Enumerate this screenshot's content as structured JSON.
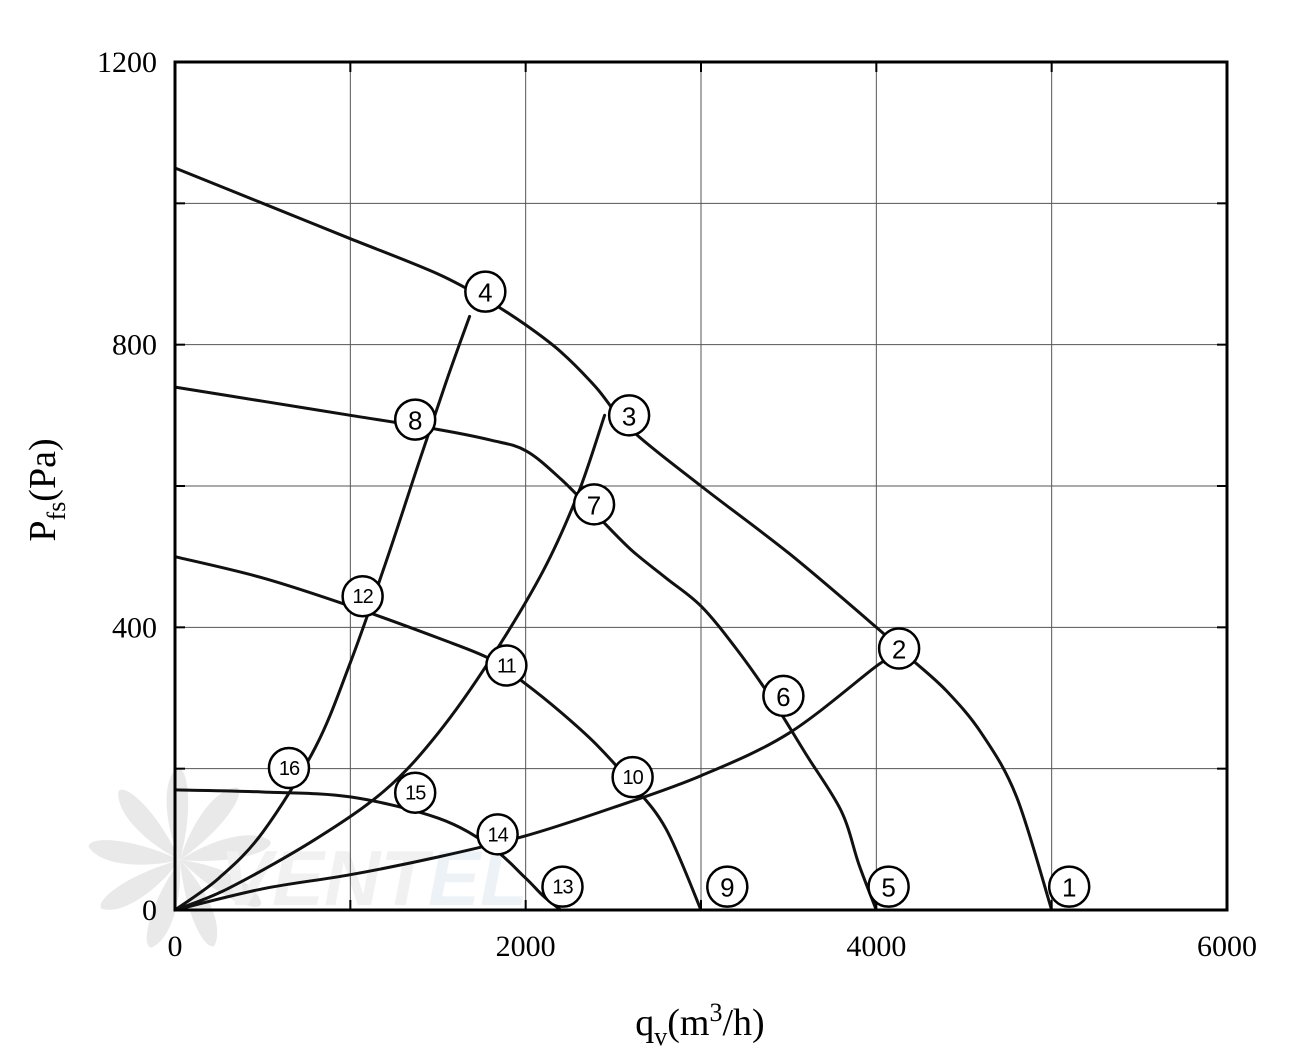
{
  "chart_data": {
    "type": "line",
    "title": "",
    "xlabel": {
      "main": "q",
      "sub": "v",
      "unit": "(m",
      "sup": "3",
      "unit_end": "/h)"
    },
    "ylabel": {
      "main": "P",
      "sub": "fs",
      "unit": "(Pa)"
    },
    "xlim": [
      0,
      6000
    ],
    "ylim": [
      0,
      1200
    ],
    "x_ticks": [
      "0",
      "2000",
      "4000",
      "6000"
    ],
    "y_ticks": [
      "0",
      "400",
      "800",
      "1200"
    ],
    "grid": true,
    "watermark": "VENTEL",
    "series": [
      {
        "points": [
          [
            0,
            1050
          ],
          [
            500,
            1000
          ],
          [
            1000,
            950
          ],
          [
            1500,
            900
          ],
          [
            1800,
            860
          ],
          [
            2000,
            828
          ],
          [
            2200,
            790
          ],
          [
            2400,
            740
          ],
          [
            2600,
            680
          ],
          [
            3000,
            600
          ],
          [
            3500,
            505
          ],
          [
            4000,
            400
          ],
          [
            4200,
            355
          ],
          [
            4400,
            310
          ],
          [
            4600,
            250
          ],
          [
            4800,
            160
          ],
          [
            5000,
            0
          ]
        ]
      },
      {
        "points": [
          [
            0,
            740
          ],
          [
            500,
            720
          ],
          [
            1000,
            700
          ],
          [
            1500,
            680
          ],
          [
            1800,
            665
          ],
          [
            2000,
            650
          ],
          [
            2200,
            610
          ],
          [
            2400,
            560
          ],
          [
            2600,
            510
          ],
          [
            2800,
            470
          ],
          [
            3000,
            430
          ],
          [
            3200,
            370
          ],
          [
            3400,
            300
          ],
          [
            3600,
            220
          ],
          [
            3800,
            140
          ],
          [
            3900,
            65
          ],
          [
            4000,
            0
          ]
        ]
      },
      {
        "points": [
          [
            0,
            500
          ],
          [
            500,
            470
          ],
          [
            1000,
            430
          ],
          [
            1500,
            385
          ],
          [
            1800,
            355
          ],
          [
            2000,
            320
          ],
          [
            2200,
            280
          ],
          [
            2400,
            235
          ],
          [
            2600,
            180
          ],
          [
            2800,
            115
          ],
          [
            3000,
            0
          ]
        ]
      },
      {
        "points": [
          [
            0,
            170
          ],
          [
            500,
            167
          ],
          [
            1000,
            160
          ],
          [
            1500,
            130
          ],
          [
            1800,
            90
          ],
          [
            2000,
            45
          ],
          [
            2100,
            20
          ],
          [
            2200,
            0
          ]
        ]
      },
      {
        "points": [
          [
            0,
            0
          ],
          [
            500,
            30
          ],
          [
            1000,
            50
          ],
          [
            1500,
            75
          ],
          [
            2000,
            105
          ],
          [
            2500,
            145
          ],
          [
            3000,
            190
          ],
          [
            3500,
            250
          ],
          [
            4000,
            345
          ],
          [
            4050,
            350
          ]
        ]
      },
      {
        "points": [
          [
            0,
            0
          ],
          [
            300,
            30
          ],
          [
            800,
            100
          ],
          [
            1200,
            170
          ],
          [
            1500,
            250
          ],
          [
            1800,
            355
          ],
          [
            2100,
            480
          ],
          [
            2300,
            590
          ],
          [
            2450,
            700
          ]
        ]
      },
      {
        "points": [
          [
            0,
            0
          ],
          [
            250,
            45
          ],
          [
            500,
            110
          ],
          [
            800,
            230
          ],
          [
            1000,
            350
          ],
          [
            1200,
            490
          ],
          [
            1400,
            640
          ],
          [
            1550,
            750
          ],
          [
            1680,
            840
          ]
        ]
      }
    ],
    "markers": [
      {
        "label": "1",
        "x": 5100,
        "y": 33
      },
      {
        "label": "2",
        "x": 4130,
        "y": 370
      },
      {
        "label": "3",
        "x": 2590,
        "y": 700
      },
      {
        "label": "4",
        "x": 1770,
        "y": 875
      },
      {
        "label": "5",
        "x": 4070,
        "y": 33
      },
      {
        "label": "6",
        "x": 3470,
        "y": 303
      },
      {
        "label": "7",
        "x": 2390,
        "y": 574
      },
      {
        "label": "8",
        "x": 1370,
        "y": 694
      },
      {
        "label": "9",
        "x": 3150,
        "y": 33
      },
      {
        "label": "10",
        "x": 2610,
        "y": 188
      },
      {
        "label": "11",
        "x": 1890,
        "y": 346
      },
      {
        "label": "12",
        "x": 1070,
        "y": 444
      },
      {
        "label": "13",
        "x": 2210,
        "y": 33
      },
      {
        "label": "14",
        "x": 1840,
        "y": 107
      },
      {
        "label": "15",
        "x": 1370,
        "y": 166
      },
      {
        "label": "16",
        "x": 650,
        "y": 201
      }
    ]
  },
  "colors": {
    "line": "#111111",
    "grid": "#555555",
    "watermark_text": "#e6e6e6",
    "watermark_accent": "#dfe9f2"
  }
}
